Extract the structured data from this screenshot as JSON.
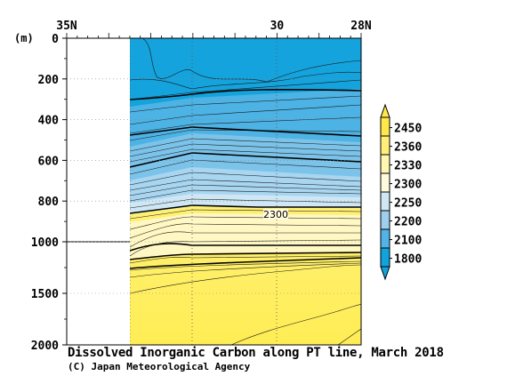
{
  "chart_data": {
    "type": "heatmap",
    "title": "Dissolved Inorganic Carbon along PT line, March 2018",
    "credit": "(C) Japan Meteorological Agency",
    "y_unit": "(m)",
    "x_ticks": [
      {
        "lat": 35,
        "label": "35N"
      },
      {
        "lat": 30,
        "label": "30"
      },
      {
        "lat": 28,
        "label": "28N"
      }
    ],
    "xlim": [
      35,
      28
    ],
    "y_ticks": [
      0,
      200,
      400,
      600,
      800,
      1000,
      1500,
      2000
    ],
    "ylim": [
      0,
      2000
    ],
    "y_scale": "piecewise: linear 0-1000 m (upper ~70%), linear 1000-2000 m (lower ~30%)",
    "data_start_lat": 33.5,
    "station_lats": [
      33.5,
      32,
      30,
      28
    ],
    "contour_label": "2300",
    "colorbar": {
      "labels": [
        "2450",
        "2360",
        "2330",
        "2300",
        "2250",
        "2200",
        "2100",
        "1800"
      ],
      "colors": [
        "#ffe94a",
        "#ffef78",
        "#fff6b0",
        "#fffbdc",
        "#d0e8f4",
        "#9ecfee",
        "#52b4e6",
        "#12a2dc"
      ]
    }
  }
}
